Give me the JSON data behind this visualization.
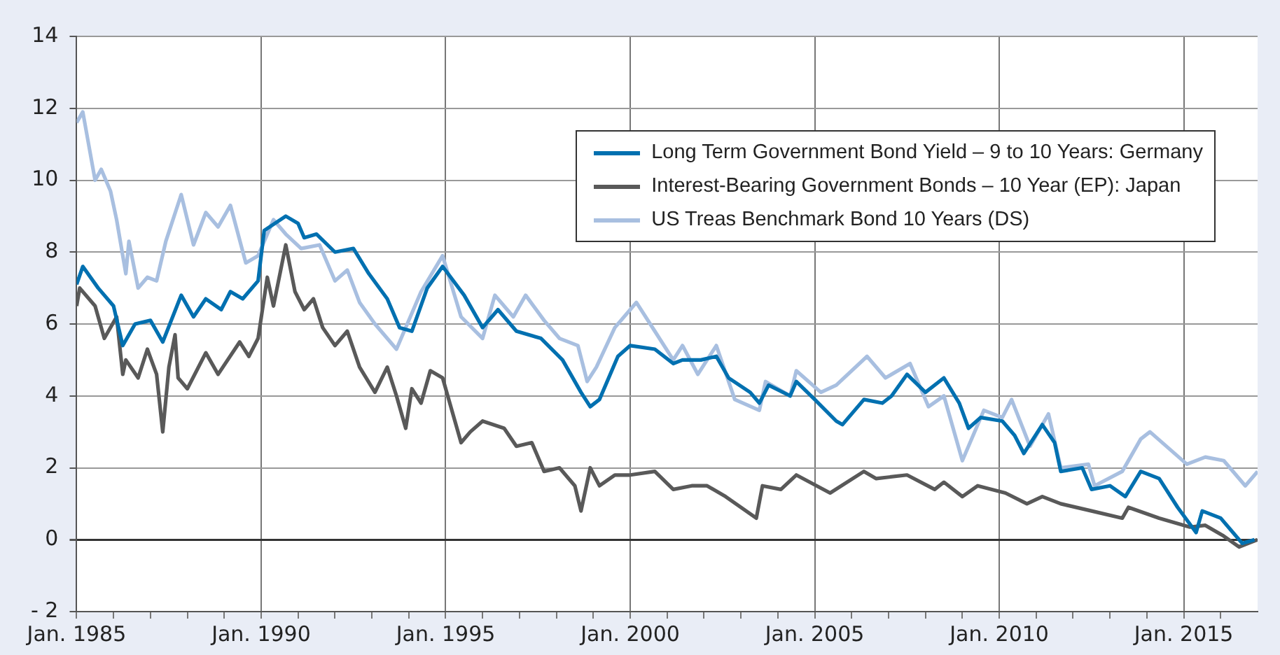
{
  "chart_data": {
    "type": "line",
    "xlim": [
      "1985-01",
      "2017-01"
    ],
    "xticks": [
      {
        "value": "1985-01",
        "label": "Jan. 1985"
      },
      {
        "value": "1986-01",
        "label": null
      },
      {
        "value": "1987-01",
        "label": null
      },
      {
        "value": "1988-01",
        "label": null
      },
      {
        "value": "1989-01",
        "label": null
      },
      {
        "value": "1990-01",
        "label": "Jan. 1990"
      },
      {
        "value": "1991-01",
        "label": null
      },
      {
        "value": "1992-01",
        "label": null
      },
      {
        "value": "1993-01",
        "label": null
      },
      {
        "value": "1994-01",
        "label": null
      },
      {
        "value": "1995-01",
        "label": "Jan. 1995"
      },
      {
        "value": "1996-01",
        "label": null
      },
      {
        "value": "1997-01",
        "label": null
      },
      {
        "value": "1998-01",
        "label": null
      },
      {
        "value": "1999-01",
        "label": null
      },
      {
        "value": "2000-01",
        "label": "Jan. 2000"
      },
      {
        "value": "2001-01",
        "label": null
      },
      {
        "value": "2002-01",
        "label": null
      },
      {
        "value": "2003-01",
        "label": null
      },
      {
        "value": "2004-01",
        "label": null
      },
      {
        "value": "2005-01",
        "label": "Jan. 2005"
      },
      {
        "value": "2006-01",
        "label": null
      },
      {
        "value": "2007-01",
        "label": null
      },
      {
        "value": "2008-01",
        "label": null
      },
      {
        "value": "2009-01",
        "label": null
      },
      {
        "value": "2010-01",
        "label": "Jan. 2010"
      },
      {
        "value": "2011-01",
        "label": null
      },
      {
        "value": "2012-01",
        "label": null
      },
      {
        "value": "2013-01",
        "label": null
      },
      {
        "value": "2014-01",
        "label": null
      },
      {
        "value": "2015-01",
        "label": "Jan. 2015"
      },
      {
        "value": "2016-01",
        "label": null
      }
    ],
    "ylim": [
      -2,
      14
    ],
    "yticks": [
      {
        "value": -2,
        "label": "- 2"
      },
      0,
      2,
      4,
      6,
      8,
      10,
      12,
      14
    ],
    "grid": true,
    "legend": "top right",
    "line_style": "solid",
    "series": [
      {
        "name": "Long Term Government Bond Yield – 9 to 10 Years: Germany",
        "color": "#0070b0",
        "x": [
          "1985-01",
          "1985-03",
          "1985-08",
          "1986-01",
          "1986-04",
          "1986-08",
          "1987-01",
          "1987-05",
          "1987-11",
          "1988-03",
          "1988-07",
          "1988-12",
          "1989-03",
          "1989-07",
          "1989-12",
          "1990-02",
          "1990-09",
          "1991-01",
          "1991-03",
          "1991-07",
          "1992-01",
          "1992-07",
          "1992-12",
          "1993-06",
          "1993-10",
          "1994-02",
          "1994-07",
          "1994-12",
          "1995-07",
          "1996-01",
          "1996-06",
          "1996-12",
          "1997-08",
          "1998-03",
          "1998-09",
          "1998-12",
          "1999-03",
          "1999-09",
          "2000-01",
          "2000-09",
          "2001-03",
          "2001-06",
          "2001-12",
          "2002-05",
          "2002-09",
          "2003-04",
          "2003-07",
          "2003-10",
          "2004-05",
          "2004-07",
          "2005-01",
          "2005-08",
          "2005-10",
          "2006-05",
          "2006-11",
          "2007-02",
          "2007-07",
          "2008-01",
          "2008-07",
          "2008-12",
          "2009-03",
          "2009-07",
          "2010-02",
          "2010-06",
          "2010-09",
          "2011-03",
          "2011-07",
          "2011-09",
          "2012-04",
          "2012-07",
          "2013-01",
          "2013-06",
          "2013-11",
          "2014-05",
          "2014-11",
          "2015-05",
          "2015-07",
          "2016-01",
          "2016-05",
          "2016-08",
          "2016-12"
        ],
        "values": [
          7.1,
          7.6,
          7.0,
          6.5,
          5.4,
          6.0,
          6.1,
          5.5,
          6.8,
          6.2,
          6.7,
          6.4,
          6.9,
          6.7,
          7.2,
          8.6,
          9.0,
          8.8,
          8.4,
          8.5,
          8.0,
          8.1,
          7.4,
          6.7,
          5.9,
          5.8,
          7.0,
          7.6,
          6.8,
          5.9,
          6.4,
          5.8,
          5.6,
          5.0,
          4.1,
          3.7,
          3.9,
          5.1,
          5.4,
          5.3,
          4.9,
          5.0,
          5.0,
          5.1,
          4.5,
          4.1,
          3.8,
          4.3,
          4.0,
          4.4,
          3.9,
          3.3,
          3.2,
          3.9,
          3.8,
          4.0,
          4.6,
          4.1,
          4.5,
          3.8,
          3.1,
          3.4,
          3.3,
          2.9,
          2.4,
          3.2,
          2.7,
          1.9,
          2.0,
          1.4,
          1.5,
          1.2,
          1.9,
          1.7,
          0.9,
          0.2,
          0.8,
          0.6,
          0.2,
          -0.1,
          0.0
        ]
      },
      {
        "name": "Interest-Bearing Government Bonds – 10 Year (EP): Japan",
        "color": "#595959",
        "x": [
          "1985-01",
          "1985-02",
          "1985-07",
          "1985-10",
          "1986-02",
          "1986-04",
          "1986-05",
          "1986-09",
          "1986-12",
          "1987-03",
          "1987-05",
          "1987-07",
          "1987-09",
          "1987-10",
          "1988-01",
          "1988-07",
          "1988-11",
          "1989-06",
          "1989-09",
          "1989-12",
          "1990-03",
          "1990-05",
          "1990-09",
          "1990-12",
          "1991-03",
          "1991-06",
          "1991-09",
          "1992-01",
          "1992-05",
          "1992-09",
          "1993-02",
          "1993-06",
          "1993-09",
          "1993-12",
          "1994-02",
          "1994-05",
          "1994-08",
          "1994-12",
          "1995-03",
          "1995-06",
          "1995-09",
          "1996-01",
          "1996-08",
          "1996-12",
          "1997-05",
          "1997-09",
          "1998-02",
          "1998-07",
          "1998-09",
          "1998-12",
          "1999-03",
          "1999-08",
          "2000-01",
          "2000-09",
          "2001-03",
          "2001-09",
          "2002-02",
          "2002-08",
          "2003-06",
          "2003-08",
          "2004-02",
          "2004-07",
          "2005-06",
          "2006-05",
          "2006-09",
          "2007-07",
          "2008-04",
          "2008-07",
          "2009-01",
          "2009-06",
          "2010-03",
          "2010-10",
          "2011-03",
          "2011-09",
          "2012-07",
          "2013-05",
          "2013-07",
          "2014-05",
          "2015-03",
          "2015-08",
          "2016-02",
          "2016-07",
          "2017-01"
        ],
        "values": [
          6.5,
          7.0,
          6.5,
          5.6,
          6.2,
          4.6,
          5.0,
          4.5,
          5.3,
          4.6,
          3.0,
          4.8,
          5.7,
          4.5,
          4.2,
          5.2,
          4.6,
          5.5,
          5.1,
          5.6,
          7.3,
          6.5,
          8.2,
          6.9,
          6.4,
          6.7,
          5.9,
          5.4,
          5.8,
          4.8,
          4.1,
          4.8,
          4.0,
          3.1,
          4.2,
          3.8,
          4.7,
          4.5,
          3.6,
          2.7,
          3.0,
          3.3,
          3.1,
          2.6,
          2.7,
          1.9,
          2.0,
          1.5,
          0.8,
          2.0,
          1.5,
          1.8,
          1.8,
          1.9,
          1.4,
          1.5,
          1.5,
          1.2,
          0.6,
          1.5,
          1.4,
          1.8,
          1.3,
          1.9,
          1.7,
          1.8,
          1.4,
          1.6,
          1.2,
          1.5,
          1.3,
          1.0,
          1.2,
          1.0,
          0.8,
          0.6,
          0.9,
          0.6,
          0.35,
          0.4,
          0.1,
          -0.2,
          0.0
        ]
      },
      {
        "name": "US Treas Benchmark Bond 10 Years (DS)",
        "color": "#a8bfe0",
        "x": [
          "1985-01",
          "1985-03",
          "1985-07",
          "1985-09",
          "1985-12",
          "1986-02",
          "1986-05",
          "1986-06",
          "1986-09",
          "1986-12",
          "1987-03",
          "1987-06",
          "1987-11",
          "1988-03",
          "1988-07",
          "1988-11",
          "1989-03",
          "1989-08",
          "1989-12",
          "1990-05",
          "1990-09",
          "1991-02",
          "1991-08",
          "1992-01",
          "1992-05",
          "1992-09",
          "1993-02",
          "1993-09",
          "1994-05",
          "1994-12",
          "1995-06",
          "1996-01",
          "1996-05",
          "1996-11",
          "1997-03",
          "1997-09",
          "1998-02",
          "1998-08",
          "1998-11",
          "1999-02",
          "1999-08",
          "2000-01",
          "2000-03",
          "2000-09",
          "2001-03",
          "2001-06",
          "2001-11",
          "2002-05",
          "2002-11",
          "2003-07",
          "2003-09",
          "2004-05",
          "2004-07",
          "2005-03",
          "2005-08",
          "2006-06",
          "2006-12",
          "2007-08",
          "2008-02",
          "2008-07",
          "2009-01",
          "2009-08",
          "2010-02",
          "2010-05",
          "2010-11",
          "2011-05",
          "2011-09",
          "2012-06",
          "2012-08",
          "2013-05",
          "2013-11",
          "2014-02",
          "2015-02",
          "2015-08",
          "2016-02",
          "2016-09",
          "2017-01"
        ],
        "values": [
          11.6,
          11.9,
          10.0,
          10.3,
          9.7,
          8.9,
          7.4,
          8.3,
          7.0,
          7.3,
          7.2,
          8.3,
          9.6,
          8.2,
          9.1,
          8.7,
          9.3,
          7.7,
          7.9,
          8.9,
          8.5,
          8.1,
          8.2,
          7.2,
          7.5,
          6.6,
          6.0,
          5.3,
          6.9,
          7.9,
          6.2,
          5.6,
          6.8,
          6.2,
          6.8,
          6.1,
          5.6,
          5.4,
          4.4,
          4.8,
          5.9,
          6.4,
          6.6,
          5.8,
          5.0,
          5.4,
          4.6,
          5.4,
          3.9,
          3.6,
          4.4,
          4.0,
          4.7,
          4.1,
          4.3,
          5.1,
          4.5,
          4.9,
          3.7,
          4.0,
          2.2,
          3.6,
          3.4,
          3.9,
          2.6,
          3.5,
          2.0,
          2.1,
          1.5,
          1.9,
          2.8,
          3.0,
          2.1,
          2.3,
          2.2,
          1.5,
          1.9
        ]
      }
    ]
  }
}
